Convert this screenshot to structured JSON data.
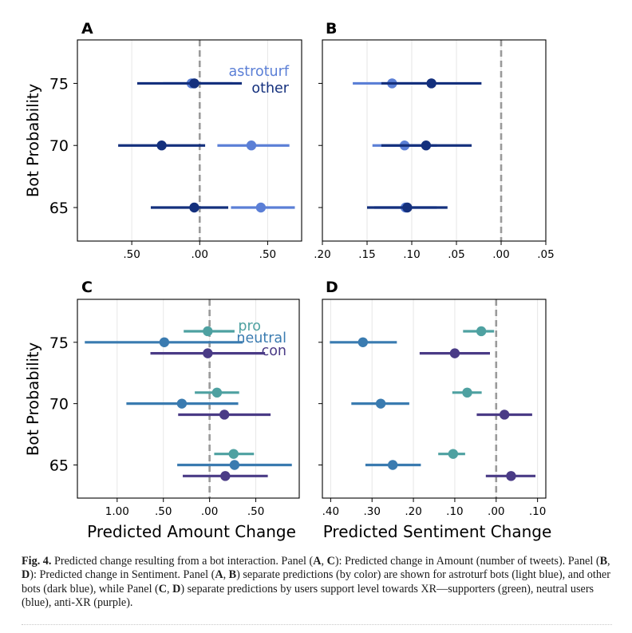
{
  "chart_data": [
    {
      "type": "scatter",
      "panel": "A",
      "ylabel": "Bot Probability",
      "xlabel": "",
      "xlim": [
        0.9,
        -0.75
      ],
      "ylim": [
        62.3,
        78.5
      ],
      "x_ticks": [
        0.5,
        0.0,
        -0.5
      ],
      "x_tick_labels": [
        ".50",
        ".00",
        ".50"
      ],
      "y_ticks": [
        65,
        70,
        75
      ],
      "y_tick_labels": [
        "65",
        "70",
        "75"
      ],
      "grid": "vertical",
      "reference_line": 0,
      "legend": {
        "placement": "top-right",
        "entries": [
          "astroturf",
          "other"
        ]
      },
      "series": [
        {
          "name": "astroturf",
          "color": "#5b7fd6",
          "points": [
            {
              "y": 75,
              "x": 0.06,
              "lo": -0.24,
              "hi": 0.27
            },
            {
              "y": 70,
              "x": -0.38,
              "lo": -0.66,
              "hi": -0.13
            },
            {
              "y": 65,
              "x": -0.45,
              "lo": -0.7,
              "hi": -0.23
            }
          ]
        },
        {
          "name": "other",
          "color": "#14307d",
          "points": [
            {
              "y": 75,
              "x": 0.04,
              "lo": -0.31,
              "hi": 0.46
            },
            {
              "y": 70,
              "x": 0.28,
              "lo": -0.04,
              "hi": 0.6
            },
            {
              "y": 65,
              "x": 0.04,
              "lo": -0.21,
              "hi": 0.36
            }
          ]
        }
      ]
    },
    {
      "type": "scatter",
      "panel": "B",
      "ylabel": "",
      "xlabel": "",
      "xlim": [
        0.2,
        -0.05
      ],
      "ylim": [
        62.3,
        78.5
      ],
      "x_ticks": [
        0.2,
        0.15,
        0.1,
        0.05,
        0.0,
        -0.05
      ],
      "x_tick_labels": [
        ".20",
        ".15",
        ".10",
        ".05",
        ".00",
        ".05"
      ],
      "y_ticks": [
        65,
        70,
        75
      ],
      "y_tick_labels": [
        "",
        "",
        ""
      ],
      "grid": "vertical",
      "reference_line": 0,
      "series": [
        {
          "name": "astroturf",
          "color": "#5b7fd6",
          "points": [
            {
              "y": 75,
              "x": 0.122,
              "lo": 0.077,
              "hi": 0.166
            },
            {
              "y": 70,
              "x": 0.108,
              "lo": 0.072,
              "hi": 0.144
            },
            {
              "y": 65,
              "x": 0.107,
              "lo": 0.072,
              "hi": 0.142
            }
          ]
        },
        {
          "name": "other",
          "color": "#14307d",
          "points": [
            {
              "y": 75,
              "x": 0.078,
              "lo": 0.022,
              "hi": 0.134
            },
            {
              "y": 70,
              "x": 0.084,
              "lo": 0.033,
              "hi": 0.134
            },
            {
              "y": 65,
              "x": 0.105,
              "lo": 0.06,
              "hi": 0.15
            }
          ]
        }
      ]
    },
    {
      "type": "scatter",
      "panel": "C",
      "ylabel": "Bot Probability",
      "xlabel": "Predicted Amount Change",
      "xlim": [
        1.43,
        -0.97
      ],
      "ylim": [
        62.3,
        78.5
      ],
      "x_ticks": [
        1.0,
        0.5,
        0.0,
        -0.5
      ],
      "x_tick_labels": [
        "1.00",
        ".50",
        ".00",
        ".50"
      ],
      "y_ticks": [
        65,
        70,
        75
      ],
      "y_tick_labels": [
        "65",
        "70",
        "75"
      ],
      "grid": "vertical",
      "reference_line": 0,
      "legend": {
        "placement": "top-right",
        "entries": [
          "pro",
          "neutral",
          "con"
        ]
      },
      "series": [
        {
          "name": "pro",
          "color": "#4ea1a1",
          "points": [
            {
              "y": 75.9,
              "x": 0.02,
              "lo": -0.27,
              "hi": 0.28
            },
            {
              "y": 70.9,
              "x": -0.08,
              "lo": -0.32,
              "hi": 0.16
            },
            {
              "y": 65.9,
              "x": -0.26,
              "lo": -0.48,
              "hi": -0.05
            }
          ]
        },
        {
          "name": "neutral",
          "color": "#3a7bb0",
          "points": [
            {
              "y": 75,
              "x": 0.49,
              "lo": -0.36,
              "hi": 1.35
            },
            {
              "y": 70,
              "x": 0.3,
              "lo": -0.31,
              "hi": 0.9
            },
            {
              "y": 65,
              "x": -0.27,
              "lo": -0.89,
              "hi": 0.35
            }
          ]
        },
        {
          "name": "con",
          "color": "#4a3b86",
          "points": [
            {
              "y": 74.1,
              "x": 0.02,
              "lo": -0.6,
              "hi": 0.64
            },
            {
              "y": 69.1,
              "x": -0.16,
              "lo": -0.66,
              "hi": 0.34
            },
            {
              "y": 64.1,
              "x": -0.17,
              "lo": -0.63,
              "hi": 0.29
            }
          ]
        }
      ]
    },
    {
      "type": "scatter",
      "panel": "D",
      "ylabel": "",
      "xlabel": "Predicted Sentiment Change",
      "xlim": [
        0.42,
        -0.12
      ],
      "ylim": [
        62.3,
        78.5
      ],
      "x_ticks": [
        0.4,
        0.3,
        0.2,
        0.1,
        0.0,
        -0.1
      ],
      "x_tick_labels": [
        ".40",
        ".30",
        ".20",
        ".10",
        ".00",
        ".10"
      ],
      "y_ticks": [
        65,
        70,
        75
      ],
      "y_tick_labels": [
        "",
        "",
        ""
      ],
      "grid": "vertical",
      "reference_line": 0,
      "series": [
        {
          "name": "pro",
          "color": "#4ea1a1",
          "points": [
            {
              "y": 75.9,
              "x": 0.036,
              "lo": 0.005,
              "hi": 0.08
            },
            {
              "y": 70.9,
              "x": 0.07,
              "lo": 0.035,
              "hi": 0.106
            },
            {
              "y": 65.9,
              "x": 0.104,
              "lo": 0.075,
              "hi": 0.14
            }
          ]
        },
        {
          "name": "neutral",
          "color": "#3a7bb0",
          "points": [
            {
              "y": 75,
              "x": 0.322,
              "lo": 0.24,
              "hi": 0.402
            },
            {
              "y": 70,
              "x": 0.279,
              "lo": 0.21,
              "hi": 0.35
            },
            {
              "y": 65,
              "x": 0.25,
              "lo": 0.182,
              "hi": 0.316
            }
          ]
        },
        {
          "name": "con",
          "color": "#4a3b86",
          "points": [
            {
              "y": 74.1,
              "x": 0.1,
              "lo": 0.015,
              "hi": 0.185
            },
            {
              "y": 69.1,
              "x": -0.02,
              "lo": -0.087,
              "hi": 0.047
            },
            {
              "y": 64.1,
              "x": -0.036,
              "lo": -0.095,
              "hi": 0.025
            }
          ]
        }
      ]
    }
  ],
  "caption": {
    "label": "Fig. 4.",
    "parts": [
      {
        "t": "  Predicted change resulting from a bot interaction. Panel (",
        "b": false
      },
      {
        "t": "A",
        "b": true
      },
      {
        "t": ", ",
        "b": false
      },
      {
        "t": "C",
        "b": true
      },
      {
        "t": "): Predicted change in Amount (number of tweets). Panel (",
        "b": false
      },
      {
        "t": "B",
        "b": true
      },
      {
        "t": ", ",
        "b": false
      },
      {
        "t": "D",
        "b": true
      },
      {
        "t": "): Predicted change in Sentiment. Panel (",
        "b": false
      },
      {
        "t": "A",
        "b": true
      },
      {
        "t": ", ",
        "b": false
      },
      {
        "t": "B",
        "b": true
      },
      {
        "t": ") separate predictions (by color) are shown for astroturf bots (light blue), and other bots (dark blue), while Panel (",
        "b": false
      },
      {
        "t": "C",
        "b": true
      },
      {
        "t": ", ",
        "b": false
      },
      {
        "t": "D",
        "b": true
      },
      {
        "t": ") separate predictions by users support level towards XR—supporters (green), neutral users (blue), anti-XR (purple).",
        "b": false
      }
    ]
  }
}
